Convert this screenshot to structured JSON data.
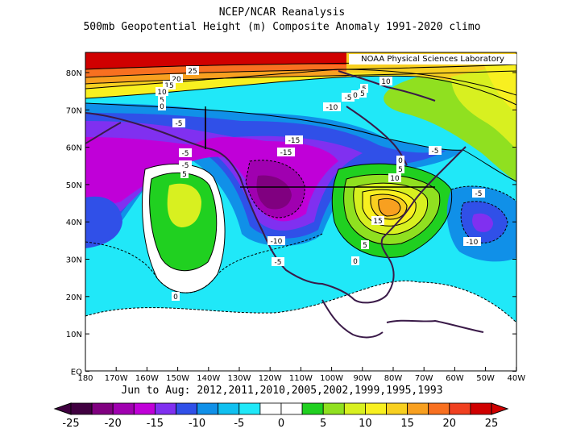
{
  "header": {
    "line1": "NCEP/NCAR Reanalysis",
    "line2": "500mb Geopotential Height (m) Composite Anomaly 1991-2020 climo"
  },
  "credit": "NOAA Physical Sciences Laboratory",
  "footer": "Jun to Aug: 2012,2011,2010,2005,2002,1999,1995,1993",
  "axes": {
    "lat_labels": [
      "80N",
      "70N",
      "60N",
      "50N",
      "40N",
      "30N",
      "20N",
      "10N",
      "EQ"
    ],
    "lon_labels": [
      "180",
      "170W",
      "160W",
      "150W",
      "140W",
      "130W",
      "120W",
      "110W",
      "100W",
      "90W",
      "80W",
      "70W",
      "60W",
      "50W",
      "40W"
    ]
  },
  "colorbar": {
    "labels": [
      "-25",
      "-20",
      "-15",
      "-10",
      "-5",
      "0",
      "5",
      "10",
      "15",
      "20",
      "25"
    ],
    "colors": [
      "#400040",
      "#800080",
      "#a000b0",
      "#c000d8",
      "#8030f0",
      "#3050e8",
      "#1090e8",
      "#10c0f0",
      "#20e8f8",
      "#ffffff",
      "#ffffff",
      "#20d020",
      "#90e020",
      "#d8f020",
      "#f8f020",
      "#f8d020",
      "#f8a020",
      "#f87020",
      "#f04020",
      "#d00000"
    ]
  },
  "contour_labels": [
    "25",
    "20",
    "15",
    "10",
    "5",
    "0",
    "-5",
    "-10",
    "5",
    "10",
    "-5",
    "5",
    "0",
    "-5",
    "-15",
    "-15",
    "-5",
    "-5",
    "-10",
    "5",
    "0",
    "5",
    "10",
    "15",
    "-5",
    "-10",
    "-10",
    "-5",
    "0",
    "5",
    "0"
  ],
  "legend_colors": {
    "land": "#3a1a48",
    "neg_strong": "#9020c0",
    "neg": "#10c0f0",
    "pos": "#f8f020"
  }
}
